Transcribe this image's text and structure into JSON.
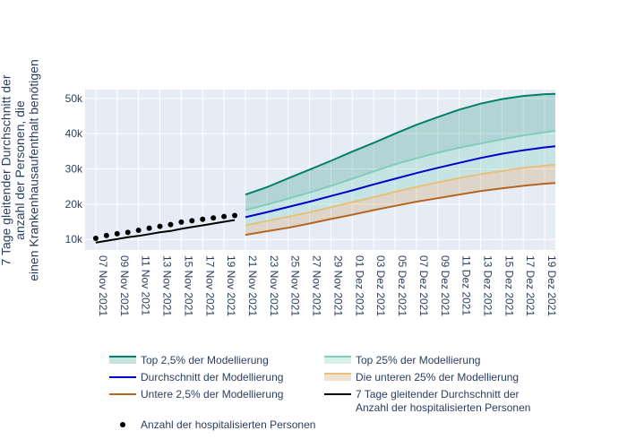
{
  "chart_data": {
    "type": "line",
    "ylabel_lines": [
      "7 Tage gleitender Durchschnitt der",
      "anzahl der Personen, die",
      "einen Krankenhausaufenthalt benötigen"
    ],
    "ylim": [
      7000,
      52500
    ],
    "yticks": [
      {
        "value": 10000,
        "label": "10k"
      },
      {
        "value": 20000,
        "label": "20k"
      },
      {
        "value": 30000,
        "label": "30k"
      },
      {
        "value": 40000,
        "label": "40k"
      },
      {
        "value": 50000,
        "label": "50k"
      }
    ],
    "xlim": [
      "2021-11-06",
      "2021-12-20"
    ],
    "xticks": [
      {
        "date": "2021-11-07",
        "label": "07 Nov 2021"
      },
      {
        "date": "2021-11-09",
        "label": "09 Nov 2021"
      },
      {
        "date": "2021-11-11",
        "label": "11 Nov 2021"
      },
      {
        "date": "2021-11-13",
        "label": "13 Nov 2021"
      },
      {
        "date": "2021-11-15",
        "label": "15 Nov 2021"
      },
      {
        "date": "2021-11-17",
        "label": "17 Nov 2021"
      },
      {
        "date": "2021-11-19",
        "label": "19 Nov 2021"
      },
      {
        "date": "2021-11-21",
        "label": "21 Nov 2021"
      },
      {
        "date": "2021-11-23",
        "label": "23 Nov 2021"
      },
      {
        "date": "2021-11-25",
        "label": "25 Nov 2021"
      },
      {
        "date": "2021-11-27",
        "label": "27 Nov 2021"
      },
      {
        "date": "2021-11-29",
        "label": "29 Nov 2021"
      },
      {
        "date": "2021-12-01",
        "label": "01 Dez 2021"
      },
      {
        "date": "2021-12-03",
        "label": "03 Dez 2021"
      },
      {
        "date": "2021-12-05",
        "label": "05 Dez 2021"
      },
      {
        "date": "2021-12-07",
        "label": "07 Dez 2021"
      },
      {
        "date": "2021-12-09",
        "label": "09 Dez 2021"
      },
      {
        "date": "2021-12-11",
        "label": "11 Dez 2021"
      },
      {
        "date": "2021-12-13",
        "label": "13 Dez 2021"
      },
      {
        "date": "2021-12-15",
        "label": "15 Dez 2021"
      },
      {
        "date": "2021-12-17",
        "label": "17 Dez 2021"
      },
      {
        "date": "2021-12-19",
        "label": "19 Dez 2021"
      }
    ],
    "grid": true,
    "background": "#e5ecf6",
    "projection_dates": [
      "2021-11-21",
      "2021-11-23",
      "2021-11-25",
      "2021-11-27",
      "2021-11-29",
      "2021-12-01",
      "2021-12-03",
      "2021-12-05",
      "2021-12-07",
      "2021-12-09",
      "2021-12-11",
      "2021-12-13",
      "2021-12-15",
      "2021-12-17",
      "2021-12-19",
      "2021-12-20"
    ],
    "projection_series": [
      {
        "key": "top25",
        "name": "Top 2,5% der Modellierung",
        "color": "#00806b",
        "width": 2,
        "values": [
          22700,
          24800,
          27300,
          29800,
          32300,
          34900,
          37400,
          40000,
          42500,
          44700,
          46800,
          48500,
          49800,
          50700,
          51200,
          51300
        ]
      },
      {
        "key": "top25q",
        "name": "Top 25% der Modellierung",
        "color": "#7fcdbb",
        "width": 2,
        "values": [
          18300,
          19900,
          21600,
          23300,
          25200,
          27200,
          29300,
          31300,
          33000,
          34600,
          36000,
          37200,
          38400,
          39500,
          40400,
          40800
        ]
      },
      {
        "key": "mean",
        "name": "Durchschnitt der Modellierung",
        "color": "#0000cd",
        "width": 2,
        "values": [
          16300,
          17700,
          19200,
          20700,
          22300,
          23900,
          25600,
          27200,
          28800,
          30300,
          31700,
          33100,
          34300,
          35300,
          36100,
          36400
        ]
      },
      {
        "key": "low25q",
        "name": "Die unteren 25% der Modellierung",
        "color": "#e8c07d",
        "width": 2,
        "values": [
          14000,
          15200,
          16400,
          17700,
          19100,
          20600,
          22000,
          23500,
          24900,
          26200,
          27400,
          28500,
          29400,
          30300,
          30900,
          31200
        ]
      },
      {
        "key": "low25",
        "name": "Untere 2,5% der Modellierung",
        "color": "#b5651d",
        "width": 2,
        "values": [
          11300,
          12300,
          13300,
          14500,
          15800,
          17000,
          18300,
          19500,
          20700,
          21700,
          22700,
          23700,
          24500,
          25200,
          25800,
          26000
        ]
      }
    ],
    "bands": [
      {
        "upper": "top25",
        "lower": "top25q",
        "fill": "rgba(0,128,107,0.22)"
      },
      {
        "upper": "top25q",
        "lower": "low25q",
        "fill": "rgba(127,205,187,0.30)"
      },
      {
        "upper": "low25q",
        "lower": "low25",
        "fill": "rgba(205,155,90,0.28)"
      }
    ],
    "rolling_avg": {
      "name": "7 Tage gleitender Durchschnitt der Anzahl der hospitalisierten Personen",
      "color": "#000000",
      "x": [
        "2021-11-07",
        "2021-11-08",
        "2021-11-09",
        "2021-11-10",
        "2021-11-11",
        "2021-11-12",
        "2021-11-13",
        "2021-11-14",
        "2021-11-15",
        "2021-11-16",
        "2021-11-17",
        "2021-11-18",
        "2021-11-19",
        "2021-11-20"
      ],
      "y": [
        9100,
        9600,
        10100,
        10600,
        11000,
        11500,
        12000,
        12400,
        13000,
        13500,
        14000,
        14500,
        15000,
        15500
      ]
    },
    "hospitalised": {
      "name": "Anzahl der hospitalisierten Personen",
      "color": "#000000",
      "x": [
        "2021-11-07",
        "2021-11-08",
        "2021-11-09",
        "2021-11-10",
        "2021-11-11",
        "2021-11-12",
        "2021-11-13",
        "2021-11-14",
        "2021-11-15",
        "2021-11-16",
        "2021-11-17",
        "2021-11-18",
        "2021-11-19",
        "2021-11-20"
      ],
      "y": [
        10300,
        11100,
        11600,
        12000,
        12600,
        13200,
        13700,
        14200,
        14900,
        15300,
        15700,
        16100,
        16500,
        16800
      ]
    },
    "legend": {
      "placement": "bottom",
      "items": [
        {
          "key": "top25",
          "kind": "line-fill",
          "color": "#00806b",
          "fill": "rgba(0,128,107,0.22)",
          "lines": [
            "Top 2,5% der Modellierung"
          ]
        },
        {
          "key": "top25q",
          "kind": "line-fill",
          "color": "#7fcdbb",
          "fill": "rgba(127,205,187,0.30)",
          "lines": [
            "Top 25% der Modellierung"
          ]
        },
        {
          "key": "mean",
          "kind": "line",
          "color": "#0000cd",
          "lines": [
            "Durchschnitt der Modellierung"
          ]
        },
        {
          "key": "low25q",
          "kind": "line-fill",
          "color": "#e8c07d",
          "fill": "rgba(205,155,90,0.28)",
          "lines": [
            "Die unteren 25% der Modellierung"
          ]
        },
        {
          "key": "low25",
          "kind": "line",
          "color": "#b5651d",
          "lines": [
            "Untere 2,5% der Modellierung"
          ]
        },
        {
          "key": "rolling",
          "kind": "line",
          "color": "#000000",
          "lines": [
            "7 Tage gleitender Durchschnitt der",
            "Anzahl der hospitalisierten Personen"
          ]
        },
        {
          "key": "points",
          "kind": "marker",
          "color": "#000000",
          "lines": [
            "Anzahl der hospitalisierten Personen"
          ]
        }
      ]
    }
  }
}
